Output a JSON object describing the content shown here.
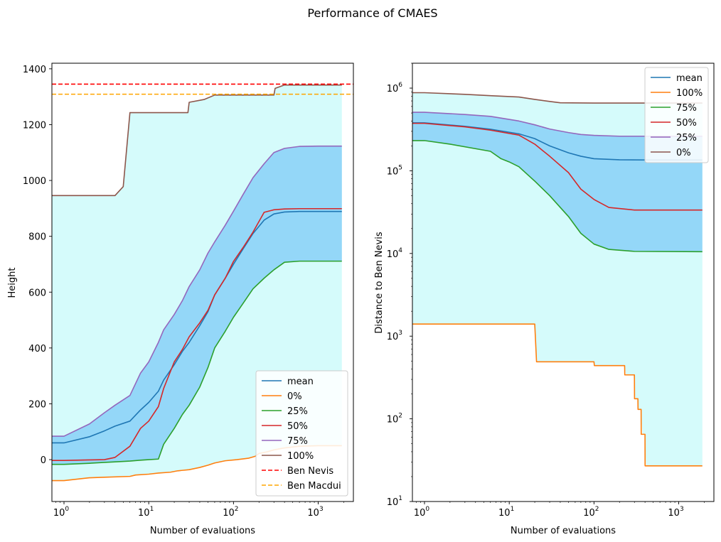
{
  "figure": {
    "title": "Performance of CMAES"
  },
  "colors": {
    "mean": "#1f77b4",
    "orange": "#ff7f0e",
    "green": "#2ca02c",
    "red": "#d62728",
    "purple": "#9467bd",
    "brown": "#8c564b",
    "outer_band": "#d5fbfb",
    "inner_band": "#94d7f8",
    "ben_nevis": "#ff0000",
    "ben_macdui": "#ffa500"
  },
  "chart_data": [
    {
      "type": "line",
      "xlabel": "Number of evaluations",
      "ylabel": "Height",
      "xscale": "log",
      "xlim": [
        0.72,
        2600
      ],
      "ylim": [
        -150,
        1420
      ],
      "xticks": [
        {
          "v": 1,
          "base": "10",
          "exp": "0"
        },
        {
          "v": 10,
          "base": "10",
          "exp": "1"
        },
        {
          "v": 100,
          "base": "10",
          "exp": "2"
        },
        {
          "v": 1000,
          "base": "10",
          "exp": "3"
        }
      ],
      "yticks": [
        0,
        200,
        400,
        600,
        800,
        1000,
        1200,
        1400
      ],
      "legend_location": "lower right",
      "grid": false,
      "bands": [
        {
          "lower": "0%",
          "upper": "100%",
          "fill": "outer_band"
        },
        {
          "lower": "25%",
          "upper": "75%",
          "fill": "inner_band"
        }
      ],
      "hlines": [
        {
          "name": "Ben Nevis",
          "y": 1345,
          "color": "ben_nevis",
          "dashed": true
        },
        {
          "name": "Ben Macdui",
          "y": 1309,
          "color": "ben_macdui",
          "dashed": true
        }
      ],
      "series": [
        {
          "name": "mean",
          "color": "mean",
          "points": [
            [
              0.72,
              60
            ],
            [
              1,
              60
            ],
            [
              2,
              82
            ],
            [
              3,
              103
            ],
            [
              4,
              120
            ],
            [
              6,
              138
            ],
            [
              8,
              178
            ],
            [
              10,
              205
            ],
            [
              13,
              245
            ],
            [
              15,
              285
            ],
            [
              20,
              340
            ],
            [
              25,
              388
            ],
            [
              30,
              420
            ],
            [
              40,
              480
            ],
            [
              50,
              530
            ],
            [
              60,
              590
            ],
            [
              80,
              650
            ],
            [
              100,
              700
            ],
            [
              130,
              755
            ],
            [
              170,
              810
            ],
            [
              230,
              858
            ],
            [
              300,
              880
            ],
            [
              400,
              887
            ],
            [
              600,
              889
            ],
            [
              1000,
              889
            ],
            [
              1900,
              889
            ]
          ]
        },
        {
          "name": "0%",
          "color": "orange",
          "step": true,
          "points": [
            [
              0.72,
              -75
            ],
            [
              1,
              -75
            ],
            [
              2,
              -65
            ],
            [
              3,
              -63
            ],
            [
              6,
              -60
            ],
            [
              7,
              -55
            ],
            [
              10,
              -52
            ],
            [
              13,
              -48
            ],
            [
              18,
              -45
            ],
            [
              22,
              -40
            ],
            [
              30,
              -36
            ],
            [
              40,
              -28
            ],
            [
              50,
              -20
            ],
            [
              60,
              -12
            ],
            [
              80,
              -4
            ],
            [
              110,
              0
            ],
            [
              150,
              5
            ],
            [
              180,
              12
            ],
            [
              200,
              22
            ],
            [
              250,
              28
            ],
            [
              300,
              35
            ],
            [
              400,
              42
            ],
            [
              600,
              48
            ],
            [
              1000,
              50
            ],
            [
              1900,
              50
            ]
          ]
        },
        {
          "name": "25%",
          "color": "green",
          "points": [
            [
              0.72,
              -17
            ],
            [
              1,
              -17
            ],
            [
              2,
              -13
            ],
            [
              3,
              -10
            ],
            [
              4,
              -8
            ],
            [
              6,
              -5
            ],
            [
              8,
              -2
            ],
            [
              10,
              0
            ],
            [
              13,
              2
            ],
            [
              15,
              55
            ],
            [
              20,
              112
            ],
            [
              25,
              162
            ],
            [
              30,
              195
            ],
            [
              40,
              260
            ],
            [
              50,
              330
            ],
            [
              60,
              400
            ],
            [
              80,
              460
            ],
            [
              100,
              510
            ],
            [
              130,
              560
            ],
            [
              170,
              612
            ],
            [
              230,
              650
            ],
            [
              300,
              680
            ],
            [
              400,
              707
            ],
            [
              600,
              711
            ],
            [
              1000,
              711
            ],
            [
              1900,
              711
            ]
          ]
        },
        {
          "name": "50%",
          "color": "red",
          "points": [
            [
              0.72,
              -3
            ],
            [
              1,
              -3
            ],
            [
              2,
              -1
            ],
            [
              3,
              0
            ],
            [
              4,
              8
            ],
            [
              6,
              48
            ],
            [
              8,
              112
            ],
            [
              10,
              138
            ],
            [
              13,
              190
            ],
            [
              15,
              255
            ],
            [
              20,
              350
            ],
            [
              25,
              395
            ],
            [
              30,
              440
            ],
            [
              40,
              490
            ],
            [
              50,
              535
            ],
            [
              60,
              590
            ],
            [
              80,
              650
            ],
            [
              100,
              710
            ],
            [
              130,
              760
            ],
            [
              170,
              815
            ],
            [
              230,
              886
            ],
            [
              300,
              895
            ],
            [
              400,
              898
            ],
            [
              600,
              899
            ],
            [
              1000,
              899
            ],
            [
              1900,
              899
            ]
          ]
        },
        {
          "name": "75%",
          "color": "purple",
          "points": [
            [
              0.72,
              84
            ],
            [
              1,
              84
            ],
            [
              2,
              128
            ],
            [
              3,
              168
            ],
            [
              4,
              195
            ],
            [
              6,
              230
            ],
            [
              8,
              310
            ],
            [
              10,
              350
            ],
            [
              13,
              420
            ],
            [
              15,
              465
            ],
            [
              20,
              520
            ],
            [
              25,
              570
            ],
            [
              30,
              620
            ],
            [
              40,
              680
            ],
            [
              50,
              740
            ],
            [
              60,
              780
            ],
            [
              80,
              840
            ],
            [
              100,
              890
            ],
            [
              130,
              950
            ],
            [
              170,
              1010
            ],
            [
              230,
              1060
            ],
            [
              300,
              1100
            ],
            [
              400,
              1115
            ],
            [
              600,
              1122
            ],
            [
              1000,
              1123
            ],
            [
              1900,
              1123
            ]
          ]
        },
        {
          "name": "100%",
          "color": "brown",
          "step": true,
          "points": [
            [
              0.72,
              946
            ],
            [
              1,
              946
            ],
            [
              4,
              946
            ],
            [
              5,
              978
            ],
            [
              6,
              1243
            ],
            [
              10,
              1243
            ],
            [
              29,
              1243
            ],
            [
              30,
              1280
            ],
            [
              45,
              1290
            ],
            [
              60,
              1306
            ],
            [
              300,
              1306
            ],
            [
              310,
              1330
            ],
            [
              400,
              1342
            ],
            [
              600,
              1342
            ],
            [
              1000,
              1342
            ],
            [
              1900,
              1342
            ]
          ]
        }
      ]
    },
    {
      "type": "line",
      "xlabel": "Number of evaluations",
      "ylabel": "Distance to Ben Nevis",
      "xscale": "log",
      "yscale": "log",
      "xlim": [
        0.72,
        2600
      ],
      "ylim": [
        10,
        2000000
      ],
      "xticks": [
        {
          "v": 1,
          "base": "10",
          "exp": "0"
        },
        {
          "v": 10,
          "base": "10",
          "exp": "1"
        },
        {
          "v": 100,
          "base": "10",
          "exp": "2"
        },
        {
          "v": 1000,
          "base": "10",
          "exp": "3"
        }
      ],
      "yticks": [
        {
          "v": 10,
          "base": "10",
          "exp": "1"
        },
        {
          "v": 100,
          "base": "10",
          "exp": "2"
        },
        {
          "v": 1000,
          "base": "10",
          "exp": "3"
        },
        {
          "v": 10000,
          "base": "10",
          "exp": "4"
        },
        {
          "v": 100000,
          "base": "10",
          "exp": "5"
        },
        {
          "v": 1000000,
          "base": "10",
          "exp": "6"
        }
      ],
      "legend_location": "upper right",
      "grid": false,
      "bands": [
        {
          "lower": "100%",
          "upper": "0%",
          "fill": "outer_band"
        },
        {
          "lower": "75%",
          "upper": "25%",
          "fill": "inner_band"
        }
      ],
      "hlines": [],
      "series": [
        {
          "name": "mean",
          "color": "mean",
          "points": [
            [
              0.72,
              380000
            ],
            [
              1,
              380000
            ],
            [
              3,
              345000
            ],
            [
              6,
              318000
            ],
            [
              13,
              280000
            ],
            [
              20,
              245000
            ],
            [
              30,
              200000
            ],
            [
              50,
              165000
            ],
            [
              70,
              150000
            ],
            [
              100,
              140000
            ],
            [
              200,
              136000
            ],
            [
              500,
              135000
            ],
            [
              1900,
              135000
            ]
          ]
        },
        {
          "name": "100%",
          "color": "orange",
          "step": true,
          "points": [
            [
              0.72,
              1400
            ],
            [
              1,
              1400
            ],
            [
              20,
              1400
            ],
            [
              21,
              490
            ],
            [
              100,
              490
            ],
            [
              101,
              440
            ],
            [
              230,
              440
            ],
            [
              231,
              340
            ],
            [
              300,
              340
            ],
            [
              301,
              175
            ],
            [
              330,
              175
            ],
            [
              331,
              130
            ],
            [
              360,
              130
            ],
            [
              361,
              65
            ],
            [
              400,
              65
            ],
            [
              401,
              27
            ],
            [
              1900,
              27
            ]
          ]
        },
        {
          "name": "75%",
          "color": "green",
          "points": [
            [
              0.72,
              232000
            ],
            [
              1,
              232000
            ],
            [
              2,
              210000
            ],
            [
              6,
              172000
            ],
            [
              8,
              140000
            ],
            [
              10,
              128000
            ],
            [
              13,
              112000
            ],
            [
              20,
              75000
            ],
            [
              30,
              50000
            ],
            [
              50,
              28000
            ],
            [
              70,
              17500
            ],
            [
              100,
              13000
            ],
            [
              150,
              11200
            ],
            [
              300,
              10600
            ],
            [
              1900,
              10500
            ]
          ]
        },
        {
          "name": "50%",
          "color": "red",
          "points": [
            [
              0.72,
              375000
            ],
            [
              1,
              375000
            ],
            [
              3,
              340000
            ],
            [
              6,
              310000
            ],
            [
              13,
              270000
            ],
            [
              20,
              210000
            ],
            [
              30,
              150000
            ],
            [
              50,
              95000
            ],
            [
              70,
              60000
            ],
            [
              100,
              45000
            ],
            [
              150,
              36000
            ],
            [
              300,
              33500
            ],
            [
              1900,
              33500
            ]
          ]
        },
        {
          "name": "25%",
          "color": "purple",
          "points": [
            [
              0.72,
              510000
            ],
            [
              1,
              510000
            ],
            [
              3,
              480000
            ],
            [
              6,
              455000
            ],
            [
              13,
              400000
            ],
            [
              20,
              360000
            ],
            [
              30,
              320000
            ],
            [
              50,
              290000
            ],
            [
              70,
              275000
            ],
            [
              100,
              268000
            ],
            [
              200,
              262000
            ],
            [
              1900,
              262000
            ]
          ]
        },
        {
          "name": "0%",
          "color": "brown",
          "step": true,
          "points": [
            [
              0.72,
              880000
            ],
            [
              1,
              880000
            ],
            [
              3,
              840000
            ],
            [
              6,
              810000
            ],
            [
              13,
              780000
            ],
            [
              20,
              730000
            ],
            [
              30,
              690000
            ],
            [
              40,
              665000
            ],
            [
              100,
              660000
            ],
            [
              1900,
              660000
            ]
          ]
        }
      ]
    }
  ]
}
